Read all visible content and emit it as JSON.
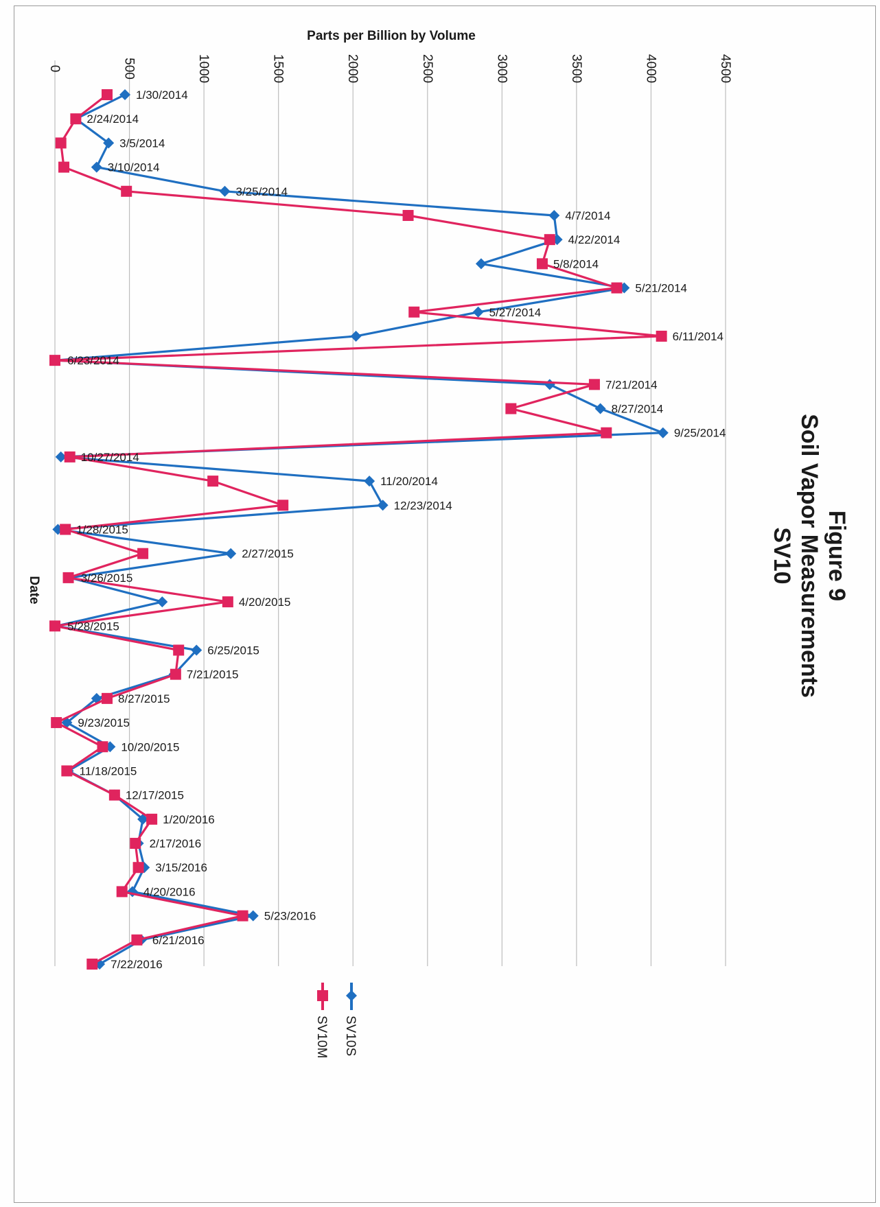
{
  "figure": {
    "title_lines": [
      "Figure 9",
      "Soil Vapor Measurements",
      "SV10"
    ]
  },
  "chart_data": {
    "type": "line",
    "orientation": "rotated 90 degrees clockwise",
    "title": "Figure 9 Soil Vapor Measurements SV10",
    "xlabel": "Date",
    "ylabel": "Parts per Billion by Volume",
    "ylim": [
      0,
      4500
    ],
    "y_ticks": [
      0,
      500,
      1000,
      1500,
      2000,
      2500,
      3000,
      3500,
      4000,
      4500
    ],
    "grid": true,
    "legend_position": "bottom",
    "categories": [
      "1/30/2014",
      "2/24/2014",
      "3/5/2014",
      "3/10/2014",
      "3/25/2014",
      "4/7/2014",
      "4/22/2014",
      "5/8/2014",
      "5/21/2014",
      "5/27/2014",
      "6/11/2014",
      "6/23/2014",
      "7/21/2014",
      "8/27/2014",
      "9/25/2014",
      "10/27/2014",
      "11/20/2014",
      "12/23/2014",
      "1/28/2015",
      "2/27/2015",
      "3/26/2015",
      "4/20/2015",
      "5/28/2015",
      "6/25/2015",
      "7/21/2015",
      "8/27/2015",
      "9/23/2015",
      "10/20/2015",
      "11/18/2015",
      "12/17/2015",
      "1/20/2016",
      "2/17/2016",
      "3/15/2016",
      "4/20/2016",
      "5/23/2016",
      "6/21/2016",
      "7/22/2016"
    ],
    "series": [
      {
        "name": "SV10S",
        "color": "#1f6fc1",
        "marker": "diamond",
        "points": [
          {
            "x": "1/30/2014",
            "y": 470
          },
          {
            "x": "2/24/2014",
            "y": 140
          },
          {
            "x": "3/5/2014",
            "y": 360
          },
          {
            "x": "3/10/2014",
            "y": 280
          },
          {
            "x": "3/25/2014",
            "y": 1140
          },
          {
            "x": "4/7/2014",
            "y": 3350
          },
          {
            "x": "4/22/2014",
            "y": 3370
          },
          {
            "x": "5/8/2014",
            "y": 2860
          },
          {
            "x": "5/21/2014",
            "y": 3820
          },
          {
            "x": "5/27/2014",
            "y": 2840
          },
          {
            "x": "6/11/2014",
            "y": 2020
          },
          {
            "x": "6/23/2014",
            "y": 10
          },
          {
            "x": "7/21/2014",
            "y": 3320
          },
          {
            "x": "8/27/2014",
            "y": 3660
          },
          {
            "x": "9/25/2014",
            "y": 4080
          },
          {
            "x": "10/27/2014",
            "y": 40
          },
          {
            "x": "11/20/2014",
            "y": 2110
          },
          {
            "x": "12/23/2014",
            "y": 2200
          },
          {
            "x": "1/28/2015",
            "y": 20
          },
          {
            "x": "2/27/2015",
            "y": 1180
          },
          {
            "x": "3/26/2015",
            "y": 100
          },
          {
            "x": "4/20/2015",
            "y": 720
          },
          {
            "x": "5/28/2015",
            "y": 10
          },
          {
            "x": "6/25/2015",
            "y": 950
          },
          {
            "x": "7/21/2015",
            "y": 800
          },
          {
            "x": "8/27/2015",
            "y": 280
          },
          {
            "x": "9/23/2015",
            "y": 80
          },
          {
            "x": "10/20/2015",
            "y": 370
          },
          {
            "x": "11/18/2015",
            "y": 90
          },
          {
            "x": "12/17/2015",
            "y": 400
          },
          {
            "x": "1/20/2016",
            "y": 590
          },
          {
            "x": "2/17/2016",
            "y": 560
          },
          {
            "x": "3/15/2016",
            "y": 600
          },
          {
            "x": "4/20/2016",
            "y": 520
          },
          {
            "x": "5/23/2016",
            "y": 1330
          },
          {
            "x": "6/21/2016",
            "y": 580
          },
          {
            "x": "7/22/2016",
            "y": 300
          }
        ]
      },
      {
        "name": "SV10M",
        "color": "#e0245e",
        "marker": "square",
        "points": [
          {
            "x": "1/30/2014",
            "y": 350
          },
          {
            "x": "2/24/2014",
            "y": 140
          },
          {
            "x": "3/5/2014",
            "y": 40
          },
          {
            "x": "3/10/2014",
            "y": 60
          },
          {
            "x": "3/25/2014",
            "y": 480
          },
          {
            "x": "4/7/2014",
            "y": 2370
          },
          {
            "x": "4/22/2014",
            "y": 3320
          },
          {
            "x": "5/8/2014",
            "y": 3270
          },
          {
            "x": "5/21/2014",
            "y": 3770
          },
          {
            "x": "5/27/2014",
            "y": 2410
          },
          {
            "x": "6/11/2014",
            "y": 4070
          },
          {
            "x": "6/23/2014",
            "y": 0
          },
          {
            "x": "7/21/2014",
            "y": 3620
          },
          {
            "x": "8/27/2014",
            "y": 3060
          },
          {
            "x": "9/25/2014",
            "y": 3700
          },
          {
            "x": "10/27/2014",
            "y": 100
          },
          {
            "x": "11/20/2014",
            "y": 1060
          },
          {
            "x": "12/23/2014",
            "y": 1530
          },
          {
            "x": "1/28/2015",
            "y": 70
          },
          {
            "x": "2/27/2015",
            "y": 590
          },
          {
            "x": "3/26/2015",
            "y": 90
          },
          {
            "x": "4/20/2015",
            "y": 1160
          },
          {
            "x": "5/28/2015",
            "y": 0
          },
          {
            "x": "6/25/2015",
            "y": 830
          },
          {
            "x": "7/21/2015",
            "y": 810
          },
          {
            "x": "8/27/2015",
            "y": 350
          },
          {
            "x": "9/23/2015",
            "y": 10
          },
          {
            "x": "10/20/2015",
            "y": 320
          },
          {
            "x": "11/18/2015",
            "y": 80
          },
          {
            "x": "12/17/2015",
            "y": 400
          },
          {
            "x": "1/20/2016",
            "y": 650
          },
          {
            "x": "2/17/2016",
            "y": 540
          },
          {
            "x": "3/15/2016",
            "y": 560
          },
          {
            "x": "4/20/2016",
            "y": 450
          },
          {
            "x": "5/23/2016",
            "y": 1260
          },
          {
            "x": "6/21/2016",
            "y": 550
          },
          {
            "x": "7/22/2016",
            "y": 250
          }
        ]
      }
    ]
  }
}
